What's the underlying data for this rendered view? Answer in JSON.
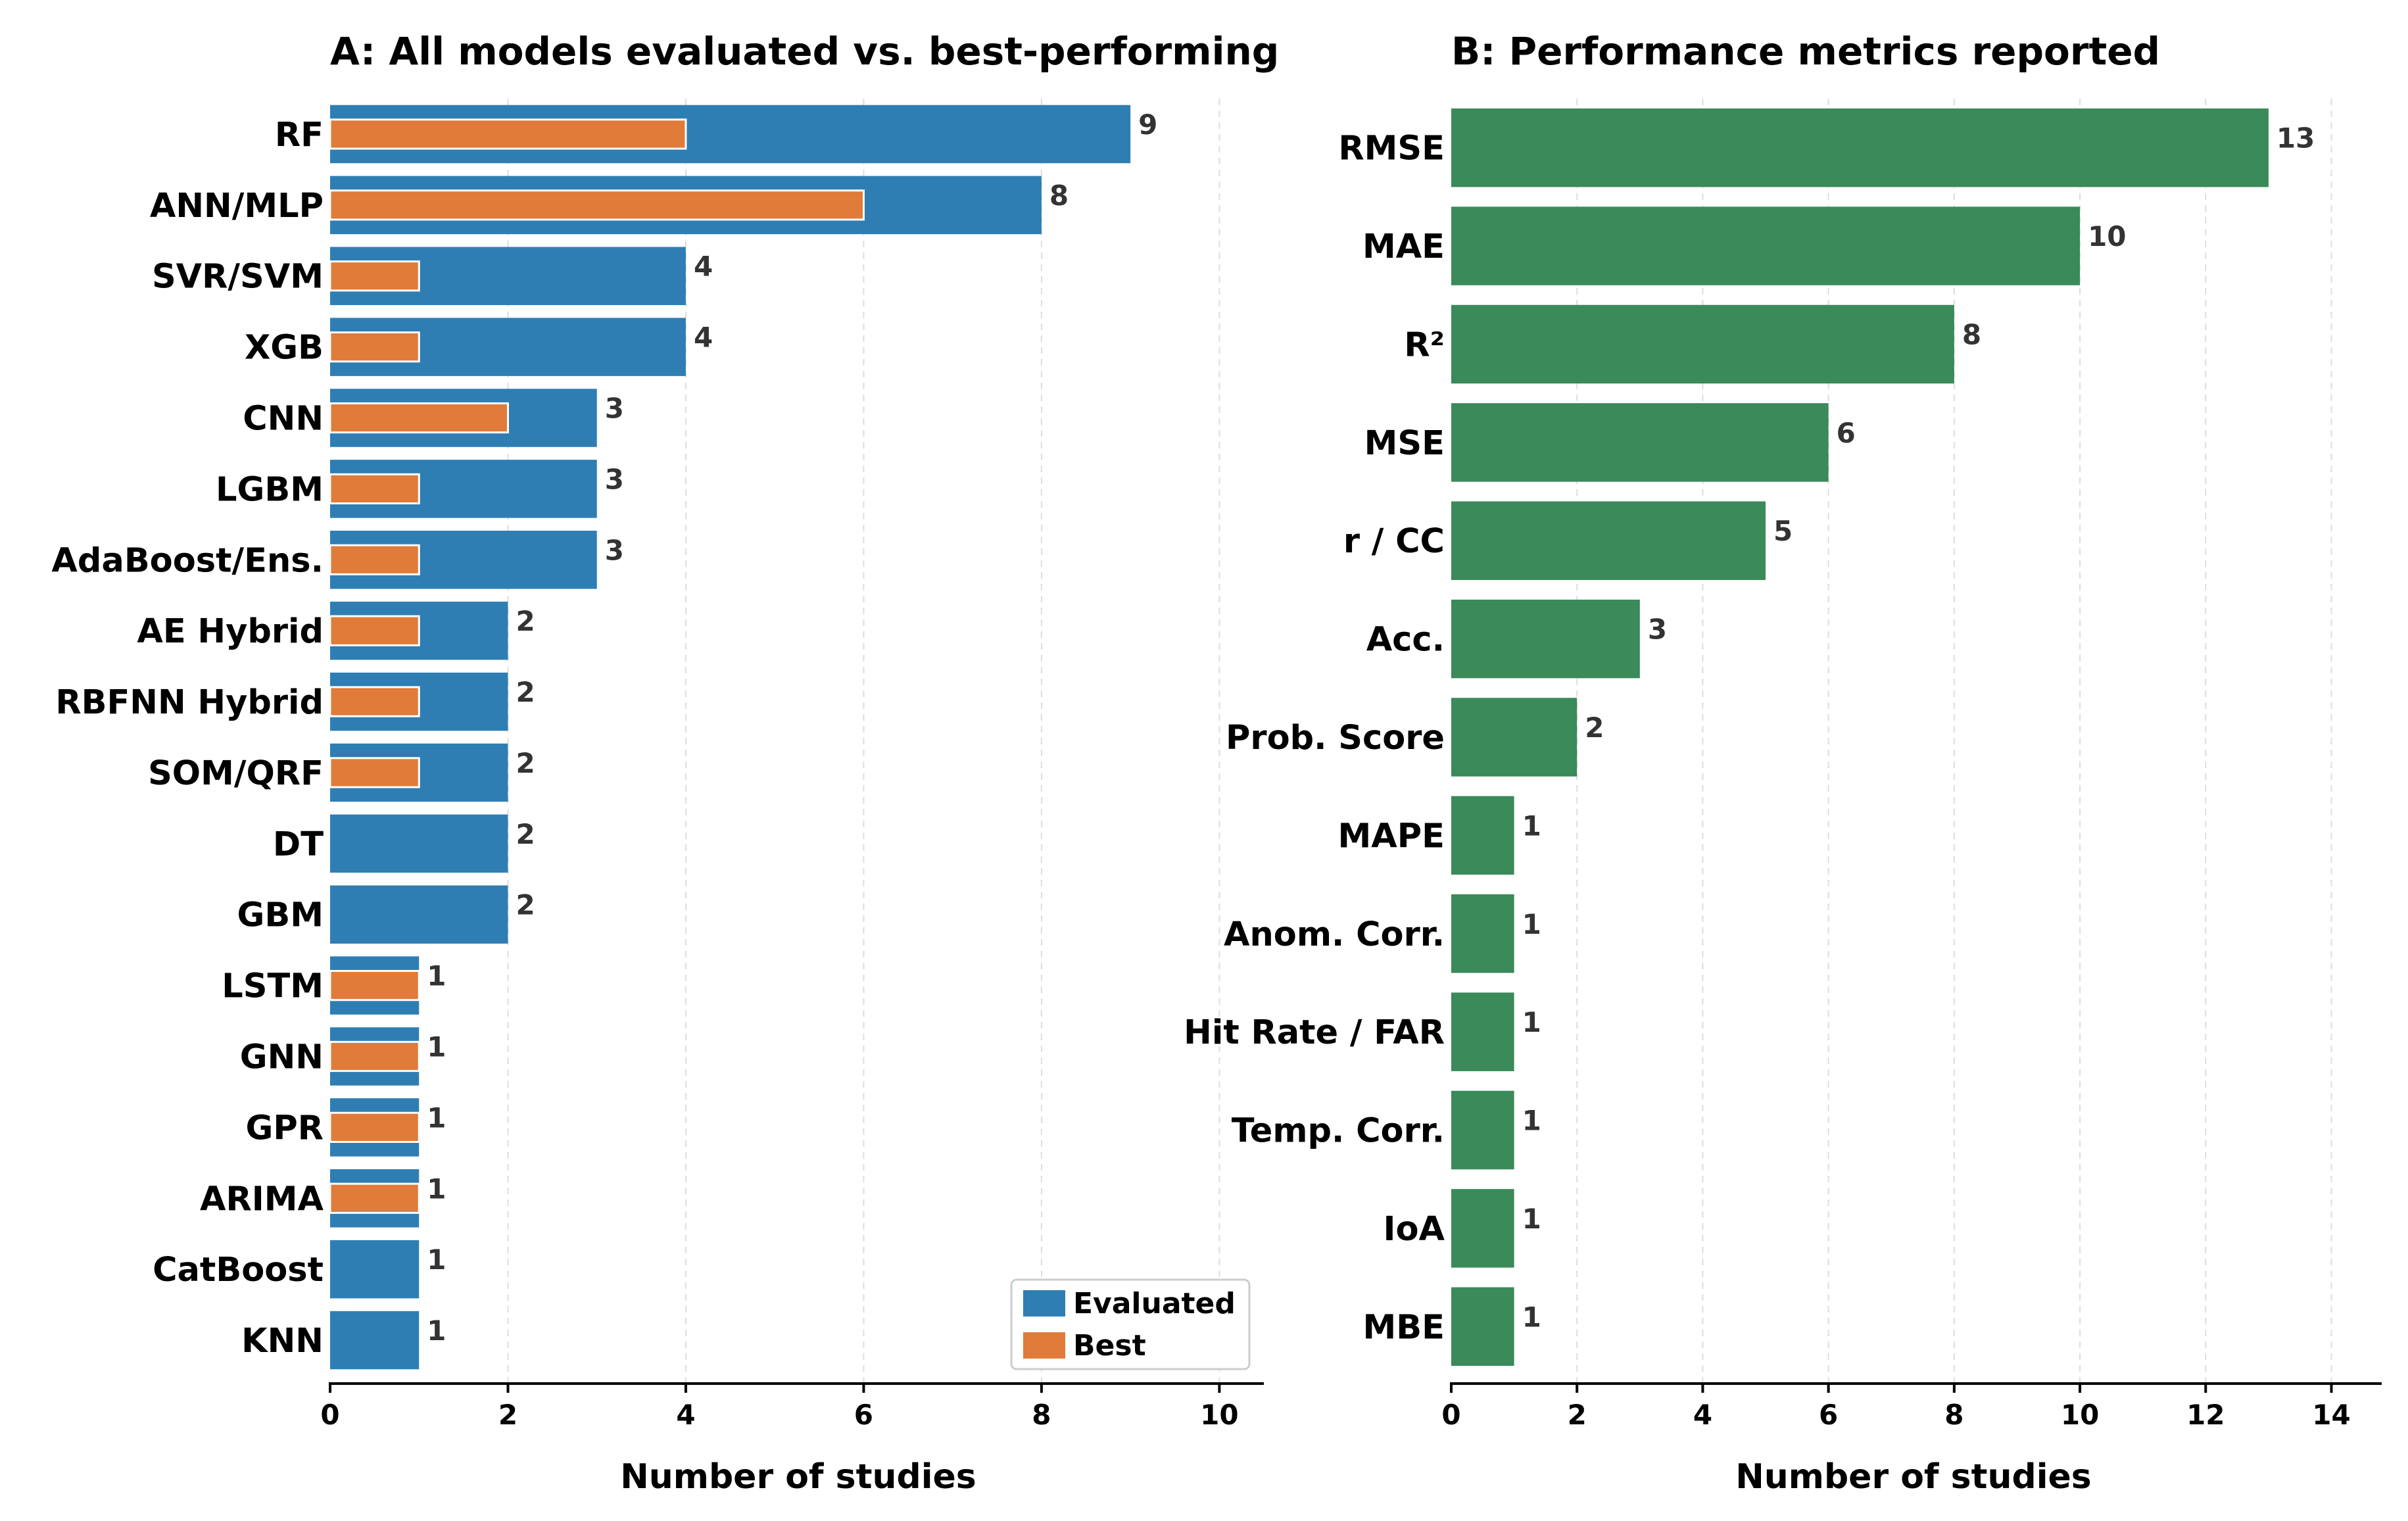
{
  "chart_data": [
    {
      "type": "bar",
      "orientation": "horizontal",
      "title": "A: All models evaluated vs. best-performing",
      "xlabel": "Number of studies",
      "ylabel": "",
      "categories": [
        "RF",
        "ANN/MLP",
        "SVR/SVM",
        "XGB",
        "CNN",
        "LGBM",
        "AdaBoost/Ens.",
        "AE Hybrid",
        "RBFNN Hybrid",
        "SOM/QRF",
        "DT",
        "GBM",
        "LSTM",
        "GNN",
        "GPR",
        "ARIMA",
        "CatBoost",
        "KNN"
      ],
      "series": [
        {
          "name": "Evaluated",
          "color": "#2e7eb3",
          "values": [
            9,
            8,
            4,
            4,
            3,
            3,
            3,
            2,
            2,
            2,
            2,
            2,
            1,
            1,
            1,
            1,
            1,
            1
          ]
        },
        {
          "name": "Best",
          "color": "#e07b39",
          "values": [
            4,
            6,
            1,
            1,
            2,
            1,
            1,
            1,
            1,
            1,
            0,
            0,
            1,
            1,
            1,
            1,
            0,
            0
          ]
        }
      ],
      "data_labels": [
        "9",
        "8",
        "4",
        "4",
        "3",
        "3",
        "3",
        "2",
        "2",
        "2",
        "2",
        "2",
        "1",
        "1",
        "1",
        "1",
        "1",
        "1"
      ],
      "xlim": [
        0,
        10.5
      ],
      "xticks": [
        "0",
        "2",
        "4",
        "6",
        "8",
        "10"
      ],
      "grid": "x, dashed",
      "legend": "lower-right"
    },
    {
      "type": "bar",
      "orientation": "horizontal",
      "title": "B: Performance metrics reported",
      "xlabel": "Number of studies",
      "ylabel": "",
      "categories": [
        "RMSE",
        "MAE",
        "R²",
        "MSE",
        "r / CC",
        "Acc.",
        "Prob. Score",
        "MAPE",
        "Anom. Corr.",
        "Hit Rate / FAR",
        "Temp. Corr.",
        "IoA",
        "MBE"
      ],
      "series": [
        {
          "color": "#3a8a5a",
          "values": [
            13,
            10,
            8,
            6,
            5,
            3,
            2,
            1,
            1,
            1,
            1,
            1,
            1
          ]
        }
      ],
      "data_labels": [
        "13",
        "10",
        "8",
        "6",
        "5",
        "3",
        "2",
        "1",
        "1",
        "1",
        "1",
        "1",
        "1"
      ],
      "xlim": [
        0,
        14.8
      ],
      "xticks": [
        "0",
        "2",
        "4",
        "6",
        "8",
        "10",
        "12",
        "14"
      ],
      "grid": "x, dashed",
      "legend": "none"
    }
  ]
}
